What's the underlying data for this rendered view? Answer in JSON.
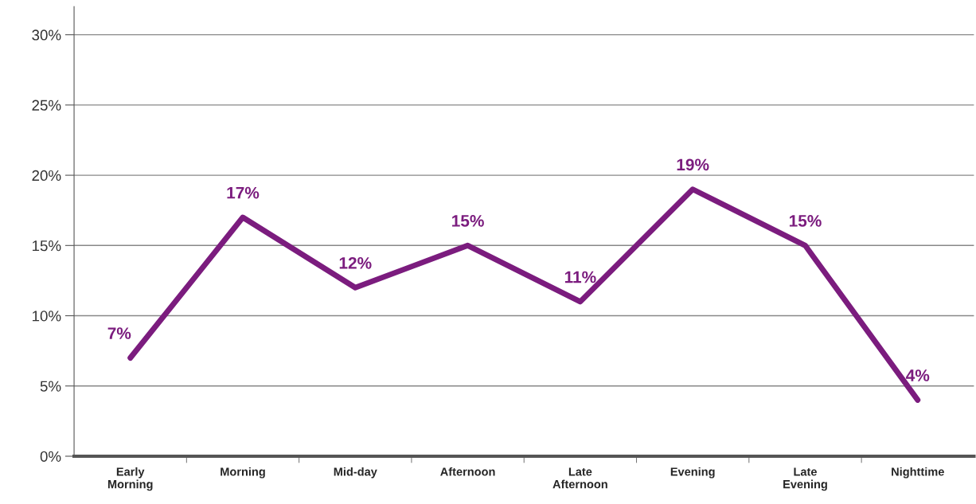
{
  "chart_data": {
    "type": "line",
    "categories": [
      "Early Morning",
      "Morning",
      "Mid-day",
      "Afternoon",
      "Late Afternoon",
      "Evening",
      "Late Evening",
      "Nighttime"
    ],
    "series": [
      {
        "color": "#7b1c7e",
        "values": [
          7,
          17,
          12,
          15,
          11,
          19,
          15,
          4
        ],
        "value_labels": [
          "7%",
          "17%",
          "12%",
          "15%",
          "11%",
          "19%",
          "15%",
          "4%"
        ]
      }
    ],
    "ylim": [
      0,
      32
    ],
    "yticks": [
      {
        "value": 0,
        "label": "0%"
      },
      {
        "value": 5,
        "label": "5%"
      },
      {
        "value": 10,
        "label": "10%"
      },
      {
        "value": 15,
        "label": "15%"
      },
      {
        "value": 20,
        "label": "20%"
      },
      {
        "value": 25,
        "label": "25%"
      },
      {
        "value": 30,
        "label": "30%"
      }
    ],
    "grid": "y",
    "legend": false,
    "marker": "none",
    "line_style": "solid"
  }
}
